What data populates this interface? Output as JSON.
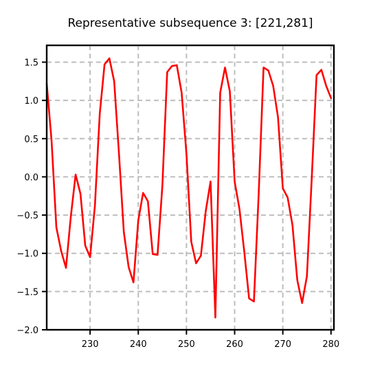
{
  "chart_data": {
    "type": "line",
    "title": "Representative subsequence 3: [221,281]",
    "xlabel": "",
    "ylabel": "",
    "xlim": [
      221,
      280.6
    ],
    "ylim": [
      -2.0,
      1.72
    ],
    "xticks": [
      230,
      240,
      250,
      260,
      270,
      280
    ],
    "yticks": [
      1.5,
      1.0,
      0.5,
      0.0,
      -0.5,
      -1.0,
      -1.5,
      -2.0
    ],
    "ytick_labels": [
      "1.5",
      "1.0",
      "0.5",
      "0.0",
      "−0.5",
      "−1.0",
      "−1.5",
      "−2.0"
    ],
    "grid": true,
    "legend": "none",
    "series": [
      {
        "color": "#ff0000",
        "x": [
          221,
          222,
          223,
          224,
          225,
          226,
          227,
          228,
          229,
          230,
          231,
          232,
          233,
          234,
          235,
          236,
          237,
          238,
          239,
          240,
          241,
          242,
          243,
          244,
          245,
          246,
          247,
          248,
          249,
          250,
          251,
          252,
          253,
          254,
          255,
          256,
          257,
          258,
          259,
          260,
          261,
          262,
          263,
          264,
          265,
          266,
          267,
          268,
          269,
          270,
          271,
          272,
          273,
          274,
          275,
          276,
          277,
          278,
          279,
          280
        ],
        "y": [
          1.22,
          0.48,
          -0.66,
          -0.97,
          -1.19,
          -0.52,
          0.03,
          -0.22,
          -0.9,
          -1.05,
          -0.38,
          0.82,
          1.47,
          1.55,
          1.25,
          0.3,
          -0.72,
          -1.18,
          -1.38,
          -0.57,
          -0.21,
          -0.32,
          -1.01,
          -1.02,
          -0.12,
          1.37,
          1.45,
          1.46,
          1.1,
          0.3,
          -0.85,
          -1.13,
          -1.03,
          -0.45,
          -0.06,
          -1.84,
          1.1,
          1.43,
          1.12,
          -0.06,
          -0.42,
          -0.98,
          -1.59,
          -1.63,
          -0.21,
          1.43,
          1.39,
          1.19,
          0.78,
          -0.15,
          -0.27,
          -0.63,
          -1.35,
          -1.65,
          -1.3,
          -0.02,
          1.33,
          1.4,
          1.19,
          1.03
        ]
      }
    ]
  }
}
